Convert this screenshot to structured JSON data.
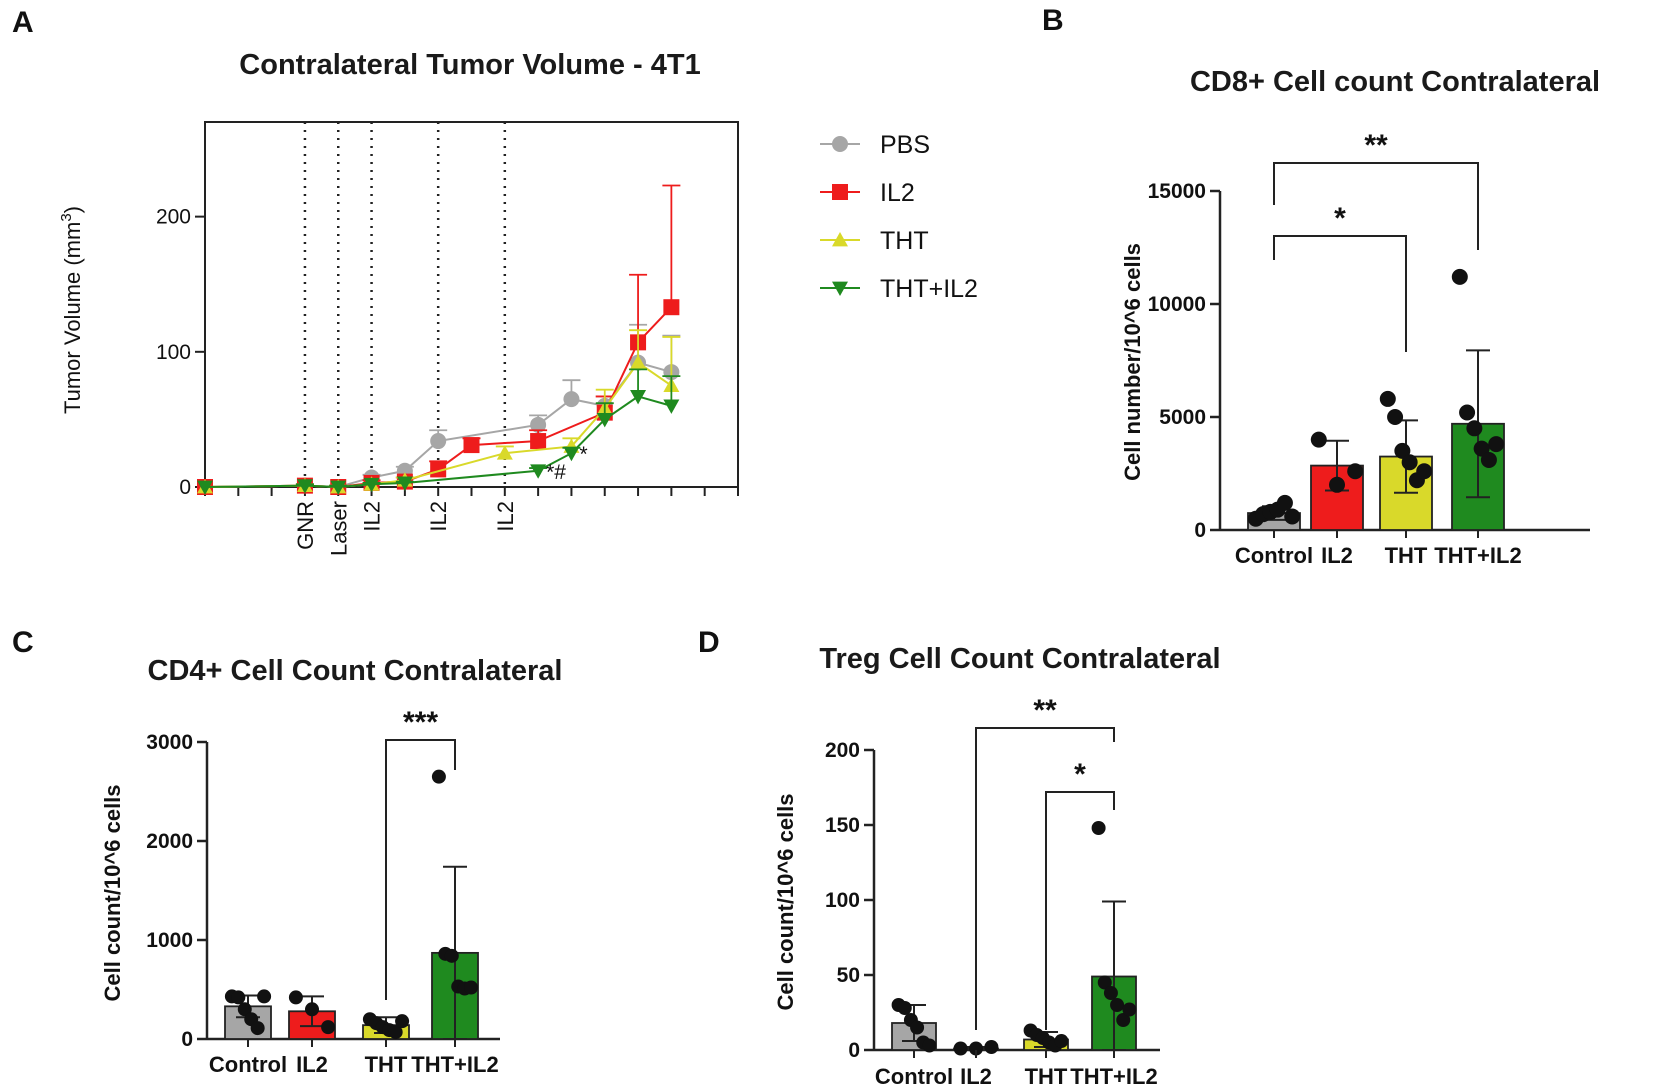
{
  "panels": {
    "A": {
      "letter": "A"
    },
    "B": {
      "letter": "B"
    },
    "C": {
      "letter": "C"
    },
    "D": {
      "letter": "D"
    }
  },
  "chart_data": [
    {
      "type": "line",
      "panel": "A",
      "title": "Contralateral Tumor Volume - 4T1",
      "ylabel": "Tumor Volume (mm",
      "ylabel_sup": "3",
      "ylabel_end": ")",
      "ylim": [
        0,
        270
      ],
      "xlim": [
        0,
        16
      ],
      "yticks": [
        0,
        100,
        200
      ],
      "xticks": [
        0,
        1,
        2,
        3,
        4,
        5,
        6,
        7,
        8,
        9,
        10,
        11,
        12,
        13,
        14,
        15,
        16
      ],
      "events": [
        {
          "x": 3,
          "label": "GNR"
        },
        {
          "x": 4,
          "label": "Laser"
        },
        {
          "x": 5,
          "label": "IL2"
        },
        {
          "x": 7,
          "label": "IL2"
        },
        {
          "x": 9,
          "label": "IL2"
        }
      ],
      "series": [
        {
          "name": "PBS",
          "color": "#a6a6a6",
          "marker": "circle",
          "x": [
            0,
            3,
            4,
            5,
            6,
            7,
            10,
            11,
            12,
            13,
            14
          ],
          "y": [
            0,
            1,
            0,
            7,
            12,
            34,
            46,
            65,
            60,
            92,
            85
          ],
          "err": [
            0,
            1,
            1,
            2,
            3,
            8,
            7,
            14,
            7,
            28,
            27
          ]
        },
        {
          "name": "IL2",
          "color": "#ee1c1c",
          "marker": "square",
          "x": [
            0,
            3,
            4,
            5,
            6,
            7,
            8,
            10,
            12,
            13,
            14
          ],
          "y": [
            0,
            1,
            0,
            3,
            4,
            13,
            31,
            34,
            55,
            107,
            133
          ],
          "err": [
            0,
            1,
            1,
            2,
            3,
            6,
            5,
            8,
            12,
            50,
            90
          ]
        },
        {
          "name": "THT",
          "color": "#d9d92a",
          "marker": "triangle",
          "x": [
            0,
            3,
            4,
            5,
            6,
            9,
            11,
            12,
            13,
            14
          ],
          "y": [
            0,
            1,
            0,
            2,
            5,
            25,
            30,
            58,
            92,
            75
          ],
          "err": [
            0,
            1,
            1,
            1,
            2,
            5,
            6,
            14,
            24,
            36
          ]
        },
        {
          "name": "THT+IL2",
          "color": "#1f8a1f",
          "marker": "triangle-down",
          "x": [
            0,
            3,
            4,
            5,
            6,
            10,
            11,
            12,
            13,
            14
          ],
          "y": [
            0,
            1,
            0,
            2,
            3,
            12,
            25,
            50,
            67,
            60
          ],
          "err": [
            0,
            1,
            1,
            1,
            1,
            2,
            4,
            12,
            20,
            22
          ]
        }
      ],
      "annotations": [
        {
          "text": "*#",
          "x": 10,
          "y": 12
        },
        {
          "text": "*",
          "x": 11,
          "y": 25
        }
      ]
    },
    {
      "type": "bar",
      "panel": "B",
      "title": "CD8+ Cell count Contralateral",
      "ylabel": "Cell number/10^6 cells",
      "ylim": [
        0,
        15000
      ],
      "yticks": [
        0,
        5000,
        10000,
        15000
      ],
      "categories": [
        "Control",
        "IL2",
        "THT",
        "THT+IL2"
      ],
      "colors": [
        "#a6a6a6",
        "#ee1c1c",
        "#d9d92a",
        "#1f8a1f"
      ],
      "values": [
        750,
        2850,
        3250,
        4700
      ],
      "errors": [
        300,
        1100,
        1600,
        3250
      ],
      "points": [
        [
          500,
          700,
          800,
          900,
          1200,
          600
        ],
        [
          4000,
          2000,
          2600
        ],
        [
          5800,
          5000,
          3500,
          3000,
          2200,
          2600
        ],
        [
          11200,
          5200,
          4500,
          3600,
          3100,
          3800
        ]
      ],
      "significance": [
        {
          "from": 0,
          "to": 2,
          "label": "*"
        },
        {
          "from": 0,
          "to": 3,
          "label": "**"
        }
      ]
    },
    {
      "type": "bar",
      "panel": "C",
      "title": "CD4+ Cell Count Contralateral",
      "ylabel": "Cell count/10^6 cells",
      "ylim": [
        0,
        3000
      ],
      "yticks": [
        0,
        1000,
        2000,
        3000
      ],
      "categories": [
        "Control",
        "IL2",
        "THT",
        "THT+IL2"
      ],
      "colors": [
        "#a6a6a6",
        "#ee1c1c",
        "#d9d92a",
        "#1f8a1f"
      ],
      "values": [
        330,
        280,
        140,
        870
      ],
      "errors": [
        110,
        150,
        80,
        870
      ],
      "points": [
        [
          430,
          420,
          300,
          200,
          110,
          430
        ],
        [
          420,
          300,
          120
        ],
        [
          200,
          160,
          120,
          90,
          70,
          180
        ],
        [
          2650,
          860,
          840,
          530,
          510,
          520
        ]
      ],
      "significance": [
        {
          "from": 2,
          "to": 3,
          "label": "***"
        }
      ]
    },
    {
      "type": "bar",
      "panel": "D",
      "title": "Treg Cell  Count Contralateral",
      "ylabel": "Cell count/10^6 cells",
      "ylim": [
        0,
        200
      ],
      "yticks": [
        0,
        50,
        100,
        150,
        200
      ],
      "categories": [
        "Control",
        "IL2",
        "THT",
        "THT+IL2"
      ],
      "colors": [
        "#a6a6a6",
        "#ee1c1c",
        "#d9d92a",
        "#1f8a1f"
      ],
      "values": [
        18,
        1,
        7,
        49
      ],
      "errors": [
        12,
        1,
        5,
        50
      ],
      "points": [
        [
          30,
          28,
          20,
          15,
          5,
          3
        ],
        [
          1,
          1,
          2
        ],
        [
          13,
          10,
          8,
          5,
          3,
          6
        ],
        [
          148,
          45,
          38,
          30,
          20,
          27
        ]
      ],
      "significance": [
        {
          "from": 2,
          "to": 3,
          "label": "*"
        },
        {
          "from": 1,
          "to": 3,
          "label": "**"
        }
      ]
    }
  ]
}
